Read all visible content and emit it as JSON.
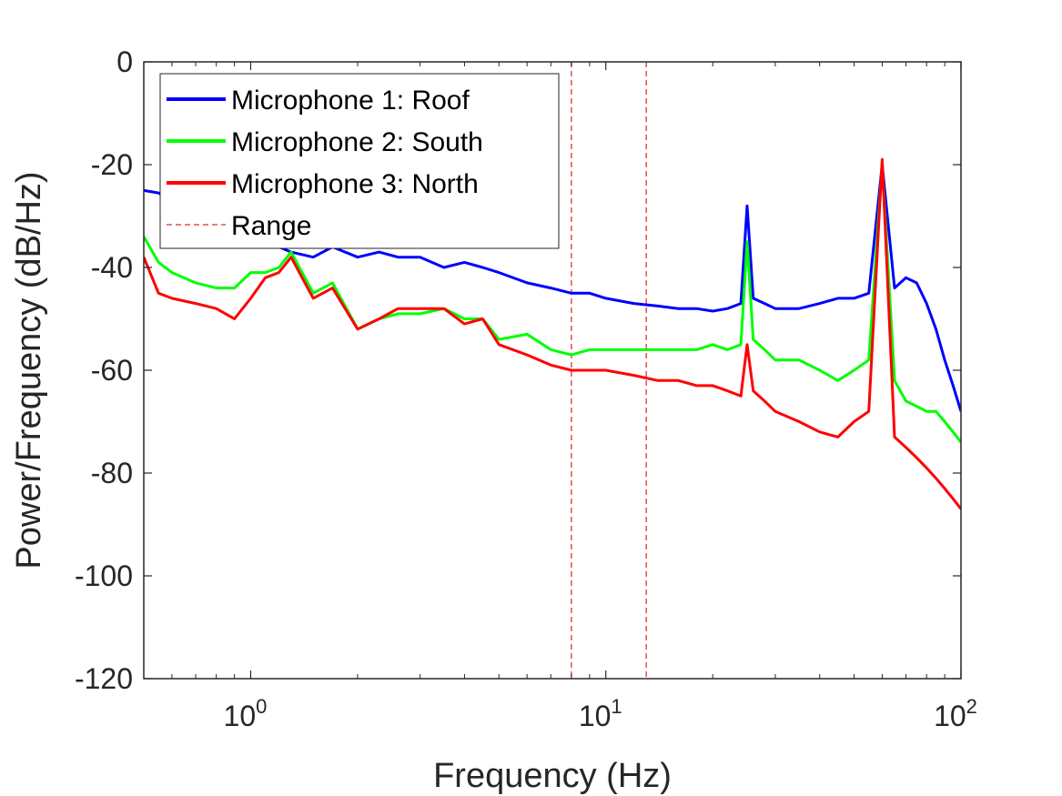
{
  "chart_data": {
    "type": "line",
    "xlabel": "Frequency (Hz)",
    "ylabel": "Power/Frequency (dB/Hz)",
    "xscale": "log",
    "xlim": [
      0.5,
      100
    ],
    "ylim": [
      -120,
      0
    ],
    "grid": false,
    "legend_position": "top-left",
    "xticks": [
      {
        "value": 1,
        "base": "10",
        "exp": "0"
      },
      {
        "value": 10,
        "base": "10",
        "exp": "1"
      },
      {
        "value": 100,
        "base": "10",
        "exp": "2"
      }
    ],
    "yticks": [
      {
        "value": 0,
        "label": "0"
      },
      {
        "value": -20,
        "label": "-20"
      },
      {
        "value": -40,
        "label": "-40"
      },
      {
        "value": -60,
        "label": "-60"
      },
      {
        "value": -80,
        "label": "-80"
      },
      {
        "value": -100,
        "label": "-100"
      },
      {
        "value": -120,
        "label": "-120"
      }
    ],
    "series": [
      {
        "name": "Microphone 1: Roof",
        "color": "#0000ff",
        "x": [
          0.5,
          0.55,
          0.6,
          0.7,
          0.8,
          0.9,
          1.0,
          1.1,
          1.2,
          1.3,
          1.5,
          1.7,
          2.0,
          2.3,
          2.6,
          3.0,
          3.5,
          4.0,
          4.5,
          5.0,
          6.0,
          7.0,
          8.0,
          9.0,
          10.0,
          12.0,
          14.0,
          16.0,
          18.0,
          20.0,
          22.0,
          24.0,
          25.0,
          26.0,
          28.0,
          30.0,
          35.0,
          40.0,
          45.0,
          50.0,
          55.0,
          60.0,
          65.0,
          70.0,
          75.0,
          80.0,
          85.0,
          90.0,
          95.0,
          100.0
        ],
        "y": [
          -25,
          -25.5,
          -27,
          -30,
          -32,
          -34,
          -35,
          -35,
          -36,
          -37,
          -38,
          -36,
          -38,
          -37,
          -38,
          -38,
          -40,
          -39,
          -40,
          -41,
          -43,
          -44,
          -45,
          -45,
          -46,
          -47,
          -47.5,
          -48,
          -48,
          -48.5,
          -48,
          -47,
          -28,
          -46,
          -47,
          -48,
          -48,
          -47,
          -46,
          -46,
          -45,
          -20,
          -44,
          -42,
          -43,
          -47,
          -52,
          -58,
          -63,
          -68
        ]
      },
      {
        "name": "Microphone 2: South",
        "color": "#00ff00",
        "x": [
          0.5,
          0.55,
          0.6,
          0.7,
          0.8,
          0.9,
          1.0,
          1.1,
          1.2,
          1.3,
          1.5,
          1.7,
          2.0,
          2.3,
          2.6,
          3.0,
          3.5,
          4.0,
          4.5,
          5.0,
          6.0,
          7.0,
          8.0,
          9.0,
          10.0,
          12.0,
          14.0,
          16.0,
          18.0,
          20.0,
          22.0,
          24.0,
          25.0,
          26.0,
          28.0,
          30.0,
          35.0,
          40.0,
          45.0,
          50.0,
          55.0,
          60.0,
          65.0,
          70.0,
          75.0,
          80.0,
          85.0,
          90.0,
          95.0,
          100.0
        ],
        "y": [
          -34,
          -39,
          -41,
          -43,
          -44,
          -44,
          -41,
          -41,
          -40,
          -37,
          -45,
          -43,
          -52,
          -50,
          -49,
          -49,
          -48,
          -50,
          -50,
          -54,
          -53,
          -56,
          -57,
          -56,
          -56,
          -56,
          -56,
          -56,
          -56,
          -55,
          -56,
          -55,
          -35,
          -54,
          -56,
          -58,
          -58,
          -60,
          -62,
          -60,
          -58,
          -20,
          -62,
          -66,
          -67,
          -68,
          -68,
          -70,
          -72,
          -74
        ]
      },
      {
        "name": "Microphone 3: North",
        "color": "#ff0000",
        "x": [
          0.5,
          0.55,
          0.6,
          0.7,
          0.8,
          0.9,
          1.0,
          1.1,
          1.2,
          1.3,
          1.5,
          1.7,
          2.0,
          2.3,
          2.6,
          3.0,
          3.5,
          4.0,
          4.5,
          5.0,
          6.0,
          7.0,
          8.0,
          9.0,
          10.0,
          12.0,
          14.0,
          16.0,
          18.0,
          20.0,
          22.0,
          24.0,
          25.0,
          26.0,
          28.0,
          30.0,
          35.0,
          40.0,
          45.0,
          50.0,
          55.0,
          60.0,
          65.0,
          70.0,
          75.0,
          80.0,
          85.0,
          90.0,
          95.0,
          100.0
        ],
        "y": [
          -38,
          -45,
          -46,
          -47,
          -48,
          -50,
          -46,
          -42,
          -41,
          -38,
          -46,
          -44,
          -52,
          -50,
          -48,
          -48,
          -48,
          -51,
          -50,
          -55,
          -57,
          -59,
          -60,
          -60,
          -60,
          -61,
          -62,
          -62,
          -63,
          -63,
          -64,
          -65,
          -55,
          -64,
          -66,
          -68,
          -70,
          -72,
          -73,
          -70,
          -68,
          -19,
          -73,
          -75,
          -77,
          -79,
          -81,
          -83,
          -85,
          -87
        ]
      }
    ],
    "reference_lines": {
      "name": "Range",
      "color": "#e05050",
      "x": [
        8,
        13
      ]
    }
  }
}
